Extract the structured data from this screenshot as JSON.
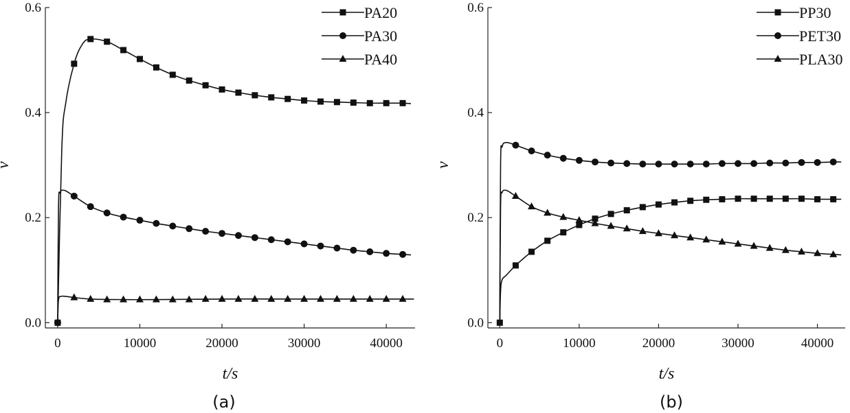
{
  "chart_data": [
    {
      "type": "line",
      "caption": "(a)",
      "xlabel": "t/s",
      "ylabel": "v",
      "xlim": [
        -1500,
        43500
      ],
      "ylim": [
        -0.01,
        0.6
      ],
      "xticks": [
        "0",
        "10000",
        "20000",
        "30000",
        "40000"
      ],
      "yticks": [
        "0.0",
        "0.2",
        "0.4",
        "0.6"
      ],
      "grid": false,
      "legend_position": "top-right",
      "series": [
        {
          "name": "PA20",
          "marker": "square",
          "x": [
            0,
            500,
            1000,
            2000,
            3000,
            4000,
            6000,
            8000,
            10000,
            12000,
            14000,
            16000,
            18000,
            20000,
            22000,
            24000,
            26000,
            28000,
            30000,
            32000,
            34000,
            36000,
            38000,
            40000,
            42000,
            43000
          ],
          "y": [
            0.0,
            0.33,
            0.42,
            0.493,
            0.53,
            0.54,
            0.535,
            0.519,
            0.502,
            0.486,
            0.472,
            0.461,
            0.452,
            0.444,
            0.438,
            0.433,
            0.429,
            0.426,
            0.423,
            0.421,
            0.42,
            0.419,
            0.418,
            0.418,
            0.418,
            0.417
          ],
          "marker_x": [
            0,
            2000,
            4000,
            6000,
            8000,
            10000,
            12000,
            14000,
            16000,
            18000,
            20000,
            22000,
            24000,
            26000,
            28000,
            30000,
            32000,
            34000,
            36000,
            38000,
            40000,
            42000
          ],
          "marker_y": [
            0.0,
            0.493,
            0.54,
            0.535,
            0.519,
            0.502,
            0.486,
            0.472,
            0.461,
            0.452,
            0.444,
            0.438,
            0.433,
            0.429,
            0.426,
            0.423,
            0.421,
            0.42,
            0.419,
            0.418,
            0.418,
            0.418
          ]
        },
        {
          "name": "PA30",
          "marker": "circle",
          "x": [
            0,
            100,
            300,
            800,
            1500,
            2000,
            4000,
            6000,
            8000,
            10000,
            12000,
            14000,
            16000,
            18000,
            20000,
            22000,
            24000,
            26000,
            28000,
            30000,
            32000,
            34000,
            36000,
            38000,
            40000,
            42000,
            43000
          ],
          "y": [
            0.0,
            0.22,
            0.248,
            0.252,
            0.246,
            0.241,
            0.221,
            0.209,
            0.201,
            0.195,
            0.189,
            0.184,
            0.179,
            0.174,
            0.17,
            0.166,
            0.162,
            0.158,
            0.154,
            0.15,
            0.146,
            0.142,
            0.138,
            0.135,
            0.132,
            0.13,
            0.129
          ],
          "marker_x": [
            0,
            2000,
            4000,
            6000,
            8000,
            10000,
            12000,
            14000,
            16000,
            18000,
            20000,
            22000,
            24000,
            26000,
            28000,
            30000,
            32000,
            34000,
            36000,
            38000,
            40000,
            42000
          ],
          "marker_y": [
            0.0,
            0.241,
            0.221,
            0.209,
            0.201,
            0.195,
            0.189,
            0.184,
            0.179,
            0.174,
            0.17,
            0.166,
            0.162,
            0.158,
            0.154,
            0.15,
            0.146,
            0.142,
            0.138,
            0.135,
            0.132,
            0.13
          ]
        },
        {
          "name": "PA40",
          "marker": "triangle",
          "x": [
            0,
            100,
            400,
            1000,
            2000,
            4000,
            8000,
            12000,
            20000,
            30000,
            42000,
            43000
          ],
          "y": [
            0.0,
            0.043,
            0.05,
            0.05,
            0.048,
            0.045,
            0.044,
            0.044,
            0.045,
            0.045,
            0.045,
            0.045
          ],
          "marker_x": [
            2000,
            4000,
            6000,
            8000,
            10000,
            12000,
            14000,
            16000,
            18000,
            20000,
            22000,
            24000,
            26000,
            28000,
            30000,
            32000,
            34000,
            36000,
            38000,
            40000,
            42000
          ],
          "marker_y": [
            0.048,
            0.045,
            0.044,
            0.044,
            0.044,
            0.044,
            0.044,
            0.044,
            0.045,
            0.045,
            0.045,
            0.045,
            0.045,
            0.045,
            0.045,
            0.045,
            0.045,
            0.045,
            0.045,
            0.045,
            0.045
          ]
        }
      ]
    },
    {
      "type": "line",
      "caption": "(b)",
      "xlabel": "t/s",
      "ylabel": "v",
      "xlim": [
        -1500,
        43500
      ],
      "ylim": [
        -0.01,
        0.6
      ],
      "xticks": [
        "0",
        "10000",
        "20000",
        "30000",
        "40000"
      ],
      "yticks": [
        "0.0",
        "0.2",
        "0.4",
        "0.6"
      ],
      "grid": false,
      "legend_position": "top-right",
      "series": [
        {
          "name": "PP30",
          "marker": "square",
          "x": [
            0,
            100,
            300,
            800,
            2000,
            4000,
            6000,
            8000,
            10000,
            12000,
            14000,
            16000,
            18000,
            20000,
            22000,
            24000,
            26000,
            28000,
            30000,
            32000,
            34000,
            36000,
            38000,
            40000,
            42000,
            43000
          ],
          "y": [
            0.0,
            0.06,
            0.082,
            0.09,
            0.109,
            0.135,
            0.156,
            0.172,
            0.186,
            0.198,
            0.207,
            0.214,
            0.22,
            0.225,
            0.229,
            0.232,
            0.234,
            0.235,
            0.236,
            0.236,
            0.236,
            0.236,
            0.236,
            0.235,
            0.235,
            0.235
          ],
          "marker_x": [
            0,
            2000,
            4000,
            6000,
            8000,
            10000,
            12000,
            14000,
            16000,
            18000,
            20000,
            22000,
            24000,
            26000,
            28000,
            30000,
            32000,
            34000,
            36000,
            38000,
            40000,
            42000
          ],
          "marker_y": [
            0.0,
            0.109,
            0.135,
            0.156,
            0.172,
            0.186,
            0.198,
            0.207,
            0.214,
            0.22,
            0.225,
            0.229,
            0.232,
            0.234,
            0.235,
            0.236,
            0.236,
            0.236,
            0.236,
            0.236,
            0.235,
            0.235
          ]
        },
        {
          "name": "PET30",
          "marker": "circle",
          "x": [
            0,
            100,
            300,
            800,
            2000,
            4000,
            6000,
            8000,
            10000,
            12000,
            14000,
            16000,
            18000,
            20000,
            22000,
            24000,
            26000,
            28000,
            30000,
            32000,
            34000,
            36000,
            38000,
            40000,
            42000,
            43000
          ],
          "y": [
            0.0,
            0.3,
            0.335,
            0.343,
            0.338,
            0.327,
            0.319,
            0.313,
            0.309,
            0.306,
            0.304,
            0.303,
            0.302,
            0.302,
            0.302,
            0.302,
            0.302,
            0.303,
            0.303,
            0.303,
            0.304,
            0.304,
            0.305,
            0.305,
            0.306,
            0.306
          ],
          "marker_x": [
            2000,
            4000,
            6000,
            8000,
            10000,
            12000,
            14000,
            16000,
            18000,
            20000,
            22000,
            24000,
            26000,
            28000,
            30000,
            32000,
            34000,
            36000,
            38000,
            40000,
            42000
          ],
          "marker_y": [
            0.338,
            0.327,
            0.319,
            0.313,
            0.309,
            0.306,
            0.304,
            0.303,
            0.302,
            0.302,
            0.302,
            0.302,
            0.302,
            0.303,
            0.303,
            0.303,
            0.304,
            0.304,
            0.305,
            0.305,
            0.306
          ]
        },
        {
          "name": "PLA30",
          "marker": "triangle",
          "x": [
            0,
            100,
            300,
            800,
            1500,
            2000,
            4000,
            6000,
            8000,
            10000,
            12000,
            14000,
            16000,
            18000,
            20000,
            22000,
            24000,
            26000,
            28000,
            30000,
            32000,
            34000,
            36000,
            38000,
            40000,
            42000,
            43000
          ],
          "y": [
            0.0,
            0.22,
            0.248,
            0.252,
            0.246,
            0.241,
            0.221,
            0.209,
            0.201,
            0.195,
            0.189,
            0.184,
            0.179,
            0.174,
            0.17,
            0.166,
            0.162,
            0.158,
            0.154,
            0.15,
            0.146,
            0.142,
            0.138,
            0.135,
            0.132,
            0.13,
            0.129
          ],
          "marker_x": [
            2000,
            4000,
            6000,
            8000,
            10000,
            12000,
            14000,
            16000,
            18000,
            20000,
            22000,
            24000,
            26000,
            28000,
            30000,
            32000,
            34000,
            36000,
            38000,
            40000,
            42000
          ],
          "marker_y": [
            0.241,
            0.221,
            0.209,
            0.201,
            0.195,
            0.189,
            0.184,
            0.179,
            0.174,
            0.17,
            0.166,
            0.162,
            0.158,
            0.154,
            0.15,
            0.146,
            0.142,
            0.138,
            0.135,
            0.132,
            0.13
          ]
        }
      ]
    }
  ]
}
